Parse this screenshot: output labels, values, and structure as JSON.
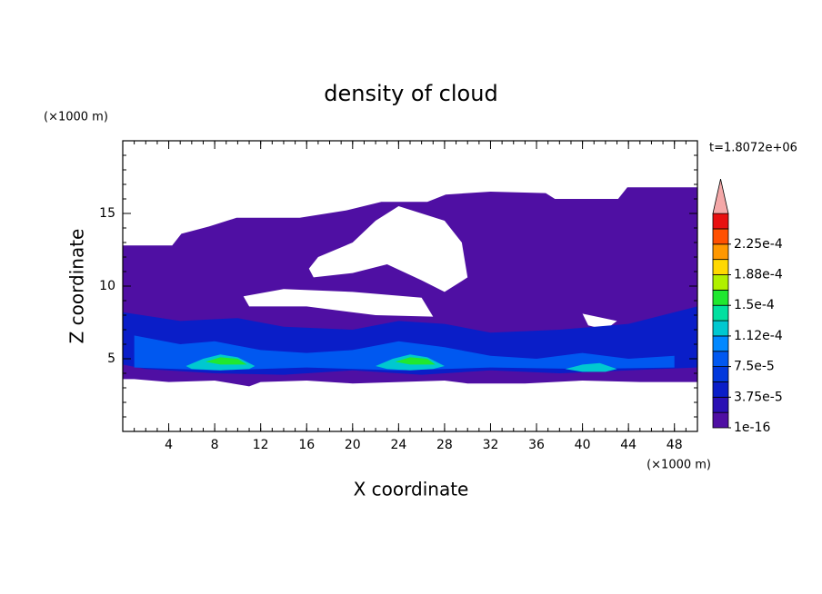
{
  "chart_data": {
    "type": "contour",
    "title": "density of cloud",
    "xlabel": "X coordinate",
    "ylabel": "Z coordinate",
    "x_unit": "(×1000 m)",
    "y_unit": "(×1000 m)",
    "annotation": "t=1.8072e+06",
    "xlim": [
      0,
      50
    ],
    "xticks": [
      4,
      8,
      12,
      16,
      20,
      24,
      28,
      32,
      36,
      40,
      44,
      48
    ],
    "ylim": [
      0,
      20
    ],
    "yticks": [
      5,
      10,
      15
    ],
    "colors": [
      "#4f0fa3",
      "#2a10b4",
      "#0a1ec8",
      "#0038dc",
      "#0058f0",
      "#0088ff",
      "#00c8d0",
      "#00e0a0",
      "#20e830",
      "#b0f000",
      "#ffd800",
      "#ff9800",
      "#ff5000",
      "#e81010"
    ],
    "extend_color": "#f4a8a8",
    "levels": [
      {
        "value": 1e-16,
        "label": "1e-16"
      },
      {
        "value": 3.75e-05,
        "label": "3.75e-5"
      },
      {
        "value": 7.5e-05,
        "label": "7.5e-5"
      },
      {
        "value": 0.000112,
        "label": "1.12e-4"
      },
      {
        "value": 0.00015,
        "label": "1.5e-4"
      },
      {
        "value": 0.000188,
        "label": "1.88e-4"
      },
      {
        "value": 0.000225,
        "label": "2.25e-4"
      }
    ],
    "regions": [
      {
        "level": 1e-16,
        "x": [
          0,
          4.3,
          5.1,
          7.5,
          9.9,
          15.4,
          19.4,
          22.5,
          26.5,
          28.1,
          32,
          36.8,
          37.6,
          43.1,
          43.9,
          50,
          50,
          45,
          40,
          35,
          30,
          28,
          24,
          20,
          16,
          12,
          11,
          8,
          4,
          1,
          0
        ],
        "z": [
          12.8,
          12.8,
          13.6,
          14.1,
          14.7,
          14.7,
          15.2,
          15.8,
          15.8,
          16.3,
          16.5,
          16.4,
          16.0,
          16.0,
          16.8,
          16.8,
          3.4,
          3.4,
          3.5,
          3.3,
          3.3,
          3.5,
          3.4,
          3.3,
          3.5,
          3.4,
          3.1,
          3.5,
          3.4,
          3.6,
          3.6
        ]
      },
      {
        "level": 3.75e-05,
        "x": [
          0,
          5,
          10,
          14,
          20,
          24,
          28,
          32,
          38,
          44,
          50,
          50,
          44,
          38,
          32,
          26,
          20,
          14,
          8,
          2,
          0
        ],
        "z": [
          8.2,
          7.6,
          7.8,
          7.2,
          7.0,
          7.6,
          7.4,
          6.8,
          7.0,
          7.4,
          8.6,
          4.4,
          4.2,
          4.0,
          4.2,
          3.9,
          4.2,
          3.9,
          4.0,
          4.3,
          4.6
        ]
      },
      {
        "level": 7.5e-05,
        "x": [
          1,
          5,
          8,
          12,
          16,
          20,
          24,
          28,
          32,
          36,
          40,
          44,
          48,
          48,
          40,
          32,
          24,
          16,
          8,
          1
        ],
        "z": [
          6.6,
          6.0,
          6.2,
          5.6,
          5.4,
          5.6,
          6.2,
          5.8,
          5.2,
          5.0,
          5.4,
          5.0,
          5.2,
          4.4,
          4.3,
          4.4,
          4.2,
          4.4,
          4.2,
          4.4
        ]
      },
      {
        "level": 0.000112,
        "x": [
          5.5,
          7,
          8.5,
          10,
          11.5,
          11,
          8.5,
          6
        ],
        "z": [
          4.5,
          5.0,
          5.3,
          5.1,
          4.5,
          4.3,
          4.2,
          4.3
        ]
      },
      {
        "level": 0.000112,
        "x": [
          22,
          23.5,
          25,
          26.5,
          28,
          27,
          25,
          23
        ],
        "z": [
          4.5,
          5.0,
          5.3,
          5.1,
          4.5,
          4.3,
          4.2,
          4.3
        ]
      },
      {
        "level": 0.000112,
        "x": [
          38.5,
          40,
          41.5,
          43,
          42,
          40
        ],
        "z": [
          4.3,
          4.6,
          4.7,
          4.3,
          4.1,
          4.1
        ]
      },
      {
        "level": 0.00015,
        "x": [
          7.2,
          8.5,
          10,
          10.8,
          8.5
        ],
        "z": [
          4.8,
          5.1,
          5.0,
          4.6,
          4.6
        ]
      },
      {
        "level": 0.00015,
        "x": [
          23.7,
          25,
          26.5,
          27.2,
          25
        ],
        "z": [
          4.8,
          5.1,
          5.0,
          4.6,
          4.6
        ]
      }
    ]
  }
}
